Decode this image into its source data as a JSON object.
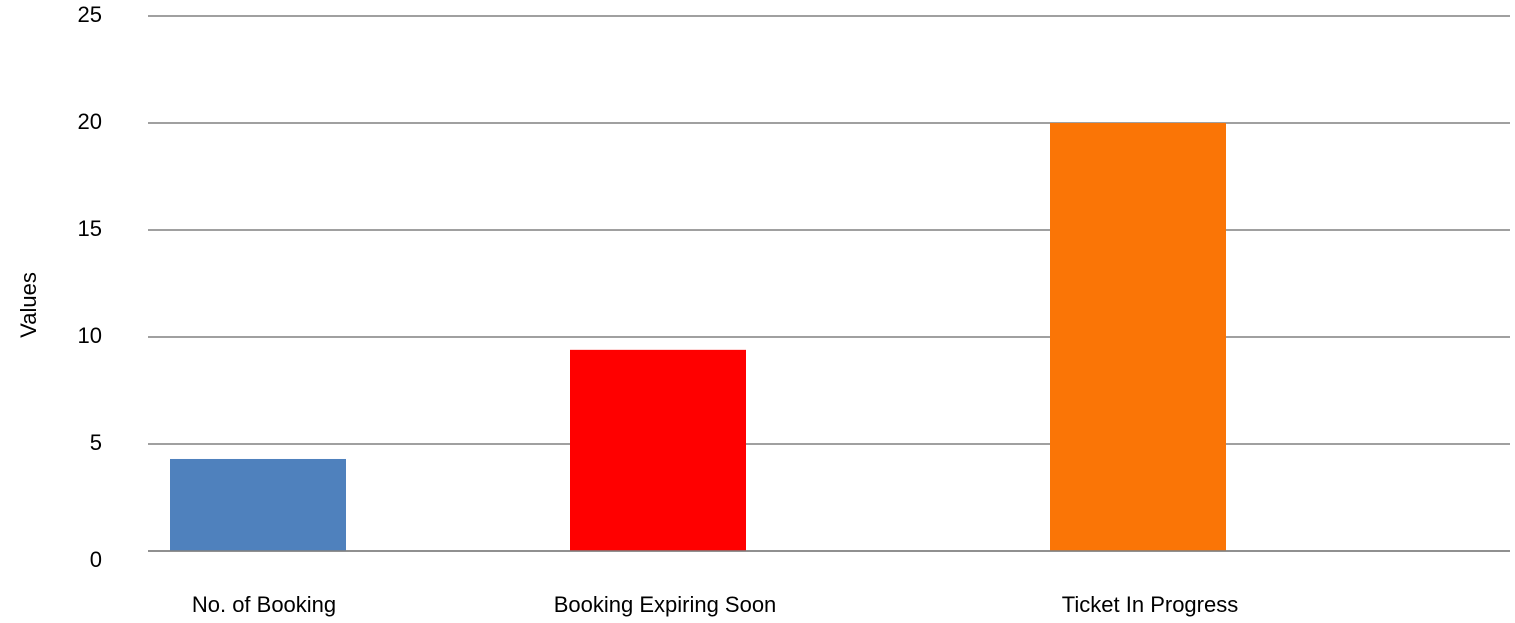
{
  "chart_data": {
    "type": "bar",
    "title": "",
    "xlabel": "",
    "ylabel": "Values",
    "ylim": [
      0,
      25
    ],
    "yticks": [
      0,
      5,
      10,
      15,
      20,
      25
    ],
    "grid": true,
    "legend": "none",
    "categories": [
      "No. of Booking",
      "Booking Expiring Soon",
      "Ticket In Progress"
    ],
    "values": [
      4.3,
      9.4,
      20
    ],
    "colors": [
      "#4f81bd",
      "#ff0000",
      "#fa7506"
    ],
    "gridline_color": "#808080"
  }
}
